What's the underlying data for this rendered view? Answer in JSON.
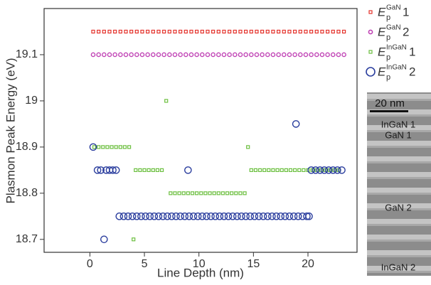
{
  "chart_data": {
    "type": "scatter",
    "y_label": "Plasmon Peak Energy (eV)",
    "x_label": "Line Depth (nm)",
    "xlim": [
      -4.2,
      24.5
    ],
    "ylim": [
      18.672,
      19.2
    ],
    "xticks": [
      0,
      5,
      10,
      15,
      20
    ],
    "yticks": [
      18.7,
      18.8,
      18.9,
      19.0,
      19.1
    ],
    "legend": "right",
    "series": [
      {
        "name": {
          "base": "E",
          "sub": "p",
          "sup": "GaN",
          "index": "1"
        },
        "color": "#e4322b",
        "marker": "square",
        "x": [
          0.3,
          0.8,
          1.3,
          1.8,
          2.3,
          2.8,
          3.3,
          3.8,
          4.3,
          4.8,
          5.3,
          5.8,
          6.3,
          6.8,
          7.3,
          7.8,
          8.3,
          8.8,
          9.3,
          9.8,
          10.3,
          10.8,
          11.3,
          11.8,
          12.3,
          12.8,
          13.3,
          13.8,
          14.3,
          14.8,
          15.3,
          15.8,
          16.3,
          16.8,
          17.3,
          17.8,
          18.3,
          18.8,
          19.3,
          19.8,
          20.3,
          20.8,
          21.3,
          21.8,
          22.3,
          22.8,
          23.3
        ],
        "values": [
          19.15,
          19.15,
          19.15,
          19.15,
          19.15,
          19.15,
          19.15,
          19.15,
          19.15,
          19.15,
          19.15,
          19.15,
          19.15,
          19.15,
          19.15,
          19.15,
          19.15,
          19.15,
          19.15,
          19.15,
          19.15,
          19.15,
          19.15,
          19.15,
          19.15,
          19.15,
          19.15,
          19.15,
          19.15,
          19.15,
          19.15,
          19.15,
          19.15,
          19.15,
          19.15,
          19.15,
          19.15,
          19.15,
          19.15,
          19.15,
          19.15,
          19.15,
          19.15,
          19.15,
          19.15,
          19.15,
          19.15
        ]
      },
      {
        "name": {
          "base": "E",
          "sub": "p",
          "sup": "GaN",
          "index": "2"
        },
        "color": "#c043b5",
        "marker": "circle",
        "x": [
          0.3,
          0.8,
          1.3,
          1.8,
          2.3,
          2.8,
          3.3,
          3.8,
          4.3,
          4.8,
          5.3,
          5.8,
          6.3,
          6.8,
          7.3,
          7.8,
          8.3,
          8.8,
          9.3,
          9.8,
          10.3,
          10.8,
          11.3,
          11.8,
          12.3,
          12.8,
          13.3,
          13.8,
          14.3,
          14.8,
          15.3,
          15.8,
          16.3,
          16.8,
          17.3,
          17.8,
          18.3,
          18.8,
          19.3,
          19.8,
          20.3,
          20.8,
          21.3,
          21.8,
          22.3,
          22.8,
          23.3
        ],
        "values": [
          19.1,
          19.1,
          19.1,
          19.1,
          19.1,
          19.1,
          19.1,
          19.1,
          19.1,
          19.1,
          19.1,
          19.1,
          19.1,
          19.1,
          19.1,
          19.1,
          19.1,
          19.1,
          19.1,
          19.1,
          19.1,
          19.1,
          19.1,
          19.1,
          19.1,
          19.1,
          19.1,
          19.1,
          19.1,
          19.1,
          19.1,
          19.1,
          19.1,
          19.1,
          19.1,
          19.1,
          19.1,
          19.1,
          19.1,
          19.1,
          19.1,
          19.1,
          19.1,
          19.1,
          19.1,
          19.1,
          19.1
        ]
      },
      {
        "name": {
          "base": "E",
          "sub": "p",
          "sup": "InGaN",
          "index": "1"
        },
        "color": "#6cbf3f",
        "marker": "square",
        "x": [
          0.4,
          0.8,
          1.2,
          1.6,
          2.0,
          2.4,
          2.8,
          3.2,
          3.6,
          4.0,
          4.2,
          4.6,
          5.0,
          5.4,
          5.8,
          6.2,
          6.6,
          7.0,
          7.4,
          7.8,
          8.2,
          8.6,
          9.0,
          9.4,
          9.8,
          10.2,
          10.6,
          11.0,
          11.4,
          11.8,
          12.2,
          12.6,
          13.0,
          13.4,
          13.8,
          14.2,
          14.5,
          14.8,
          15.2,
          15.6,
          16.0,
          16.4,
          16.8,
          17.2,
          17.6,
          18.0,
          18.4,
          18.8,
          19.2,
          19.6,
          20.0,
          20.4,
          20.8,
          21.2,
          21.6,
          22.0,
          22.4,
          22.8
        ],
        "values": [
          18.9,
          18.9,
          18.9,
          18.9,
          18.9,
          18.9,
          18.9,
          18.9,
          18.9,
          18.7,
          18.85,
          18.85,
          18.85,
          18.85,
          18.85,
          18.85,
          18.85,
          19.0,
          18.8,
          18.8,
          18.8,
          18.8,
          18.8,
          18.8,
          18.8,
          18.8,
          18.8,
          18.8,
          18.8,
          18.8,
          18.8,
          18.8,
          18.8,
          18.8,
          18.8,
          18.8,
          18.9,
          18.85,
          18.85,
          18.85,
          18.85,
          18.85,
          18.85,
          18.85,
          18.85,
          18.85,
          18.85,
          18.85,
          18.85,
          18.85,
          18.85,
          18.85,
          18.85,
          18.85,
          18.85,
          18.85,
          18.85,
          18.85
        ]
      },
      {
        "name": {
          "base": "E",
          "sub": "p",
          "sup": "InGaN",
          "index": "2"
        },
        "color": "#2b3e9e",
        "marker": "circle",
        "x": [
          0.3,
          0.7,
          1.0,
          1.3,
          1.5,
          1.8,
          2.1,
          2.4,
          2.7,
          3.1,
          3.5,
          3.9,
          4.3,
          4.7,
          5.1,
          5.5,
          5.9,
          6.3,
          6.7,
          7.1,
          7.5,
          7.9,
          8.3,
          8.7,
          9.0,
          9.1,
          9.5,
          9.9,
          10.3,
          10.7,
          11.1,
          11.5,
          11.9,
          12.3,
          12.7,
          13.1,
          13.5,
          13.9,
          14.3,
          14.7,
          15.1,
          15.5,
          15.9,
          16.3,
          16.7,
          17.1,
          17.5,
          17.9,
          18.3,
          18.7,
          18.9,
          19.1,
          19.5,
          19.9,
          20.1,
          20.3,
          20.7,
          21.1,
          21.5,
          21.9,
          22.3,
          22.7,
          23.1
        ],
        "values": [
          18.9,
          18.85,
          18.85,
          18.7,
          18.85,
          18.85,
          18.85,
          18.85,
          18.75,
          18.75,
          18.75,
          18.75,
          18.75,
          18.75,
          18.75,
          18.75,
          18.75,
          18.75,
          18.75,
          18.75,
          18.75,
          18.75,
          18.75,
          18.75,
          18.85,
          18.75,
          18.75,
          18.75,
          18.75,
          18.75,
          18.75,
          18.75,
          18.75,
          18.75,
          18.75,
          18.75,
          18.75,
          18.75,
          18.75,
          18.75,
          18.75,
          18.75,
          18.75,
          18.75,
          18.75,
          18.75,
          18.75,
          18.75,
          18.75,
          18.75,
          18.95,
          18.75,
          18.75,
          18.75,
          18.75,
          18.85,
          18.85,
          18.85,
          18.85,
          18.85,
          18.85,
          18.85,
          18.85
        ]
      }
    ],
    "inset": {
      "scale_bar": "20 nm",
      "labels": [
        "InGaN 1",
        "GaN 1",
        "GaN 2",
        "InGaN 2"
      ]
    }
  }
}
